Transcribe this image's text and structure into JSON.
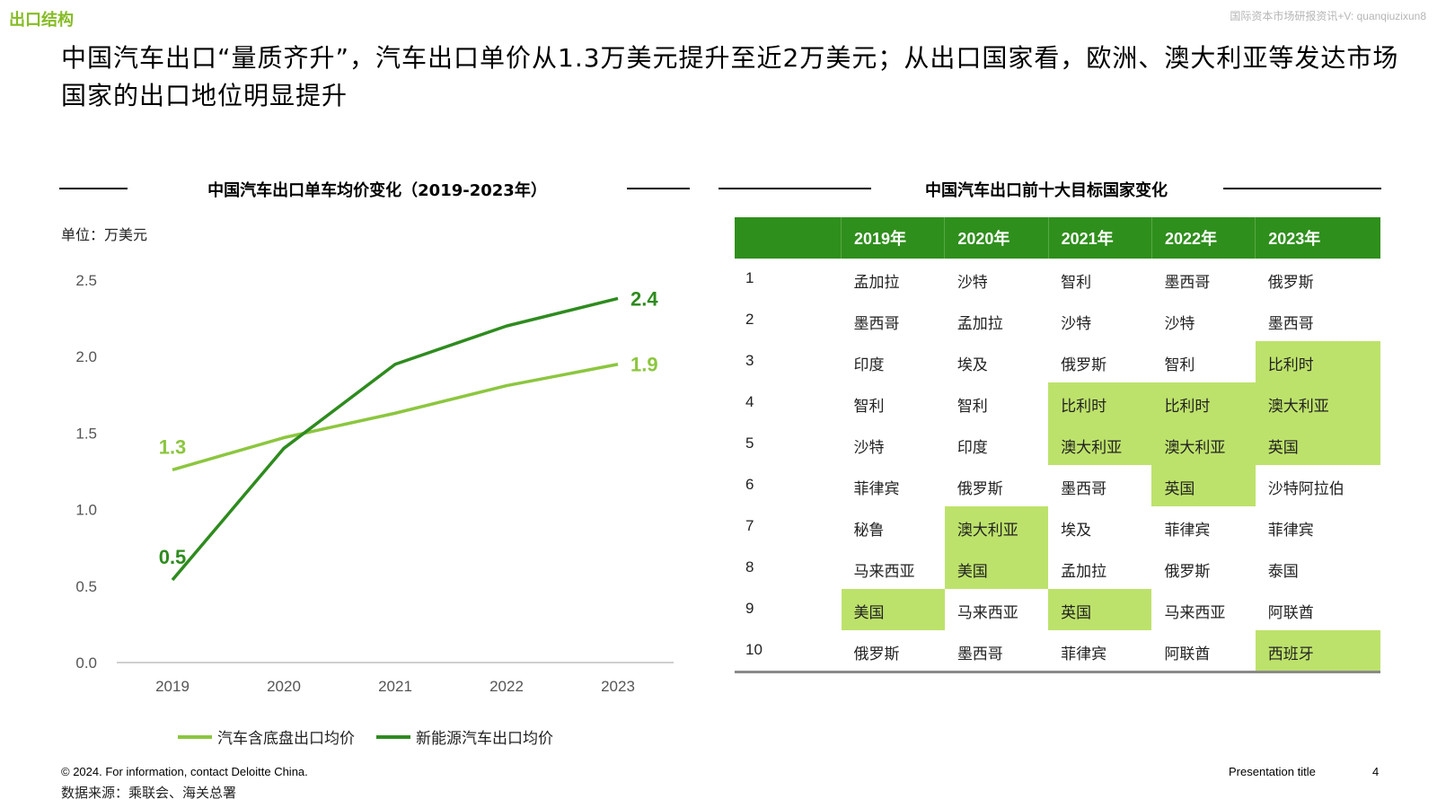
{
  "header": {
    "section_label": "出口结构",
    "watermark": "国际资本市场研报资讯+V: quanqiuzixun8",
    "title": "中国汽车出口“量质齐升”，汽车出口单价从1.3万美元提升至近2万美元；从出口国家看，欧洲、澳大利亚等发达市场国家的出口地位明显提升"
  },
  "left_panel": {
    "title": "中国汽车出口单车均价变化（2019-2023年）",
    "unit": "单位：万美元"
  },
  "chart_data": {
    "type": "line",
    "title": "中国汽车出口单车均价变化（2019-2023年）",
    "unit": "单位：万美元",
    "x": [
      "2019",
      "2020",
      "2021",
      "2022",
      "2023"
    ],
    "ylim": [
      0,
      2.5
    ],
    "yticks": [
      "0.0",
      "0.5",
      "1.0",
      "1.5",
      "2.0",
      "2.5"
    ],
    "grid": false,
    "legend_position": "bottom",
    "series": [
      {
        "name": "汽车含底盘出口均价",
        "color": "#8cc63f",
        "values": [
          1.26,
          1.47,
          1.63,
          1.81,
          1.95
        ],
        "labels": [
          {
            "index": 0,
            "text": "1.3"
          },
          {
            "index": 4,
            "text": "1.9"
          }
        ]
      },
      {
        "name": "新能源汽车出口均价",
        "color": "#2e8b1e",
        "values": [
          0.54,
          1.4,
          1.95,
          2.2,
          2.38
        ],
        "labels": [
          {
            "index": 0,
            "text": "0.5"
          },
          {
            "index": 4,
            "text": "2.4"
          }
        ]
      }
    ]
  },
  "right_panel": {
    "title": "中国汽车出口前十大目标国家变化",
    "columns": [
      "2019年",
      "2020年",
      "2021年",
      "2022年",
      "2023年"
    ],
    "highlight_color": "#bde26b",
    "rows": [
      {
        "rank": "1",
        "cells": [
          "孟加拉",
          "沙特",
          "智利",
          "墨西哥",
          "俄罗斯"
        ],
        "highlight": [
          false,
          false,
          false,
          false,
          false
        ]
      },
      {
        "rank": "2",
        "cells": [
          "墨西哥",
          "孟加拉",
          "沙特",
          "沙特",
          "墨西哥"
        ],
        "highlight": [
          false,
          false,
          false,
          false,
          false
        ]
      },
      {
        "rank": "3",
        "cells": [
          "印度",
          "埃及",
          "俄罗斯",
          "智利",
          "比利时"
        ],
        "highlight": [
          false,
          false,
          false,
          false,
          true
        ]
      },
      {
        "rank": "4",
        "cells": [
          "智利",
          "智利",
          "比利时",
          "比利时",
          "澳大利亚"
        ],
        "highlight": [
          false,
          false,
          true,
          true,
          true
        ]
      },
      {
        "rank": "5",
        "cells": [
          "沙特",
          "印度",
          "澳大利亚",
          "澳大利亚",
          "英国"
        ],
        "highlight": [
          false,
          false,
          true,
          true,
          true
        ]
      },
      {
        "rank": "6",
        "cells": [
          "菲律宾",
          "俄罗斯",
          "墨西哥",
          "英国",
          "沙特阿拉伯"
        ],
        "highlight": [
          false,
          false,
          false,
          true,
          false
        ]
      },
      {
        "rank": "7",
        "cells": [
          "秘鲁",
          "澳大利亚",
          "埃及",
          "菲律宾",
          "菲律宾"
        ],
        "highlight": [
          false,
          true,
          false,
          false,
          false
        ]
      },
      {
        "rank": "8",
        "cells": [
          "马来西亚",
          "美国",
          "孟加拉",
          "俄罗斯",
          "泰国"
        ],
        "highlight": [
          false,
          true,
          false,
          false,
          false
        ]
      },
      {
        "rank": "9",
        "cells": [
          "美国",
          "马来西亚",
          "英国",
          "马来西亚",
          "阿联酋"
        ],
        "highlight": [
          true,
          false,
          true,
          false,
          false
        ]
      },
      {
        "rank": "10",
        "cells": [
          "俄罗斯",
          "墨西哥",
          "菲律宾",
          "阿联酋",
          "西班牙"
        ],
        "highlight": [
          false,
          false,
          false,
          false,
          true
        ]
      }
    ]
  },
  "footer": {
    "copyright": "© 2024. For information, contact Deloitte China.",
    "source": "数据来源：乘联会、海关总署",
    "presentation_title": "Presentation title",
    "page_number": "4"
  }
}
